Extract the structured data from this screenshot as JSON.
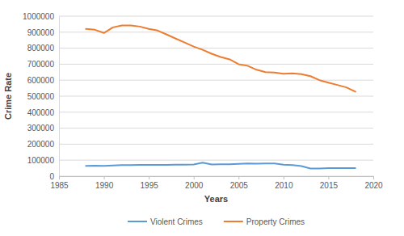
{
  "chart_data": {
    "type": "line",
    "x_label": "Years",
    "y_label": "Crime Rate",
    "x": [
      1988,
      1989,
      1990,
      1991,
      1992,
      1993,
      1994,
      1995,
      1996,
      1997,
      1998,
      1999,
      2000,
      2001,
      2002,
      2003,
      2004,
      2005,
      2006,
      2007,
      2008,
      2009,
      2010,
      2011,
      2012,
      2013,
      2014,
      2015,
      2016,
      2017,
      2018
    ],
    "series": [
      {
        "name": "Violent Crimes",
        "color": "#5b9bd5",
        "values": [
          65000,
          66000,
          65000,
          67000,
          69000,
          70000,
          71000,
          71000,
          71000,
          71000,
          72000,
          72000,
          73000,
          85000,
          73000,
          74000,
          75000,
          77000,
          79000,
          78000,
          79000,
          79000,
          72000,
          70000,
          63000,
          48000,
          48000,
          50000,
          51000,
          51000,
          51000
        ]
      },
      {
        "name": "Property Crimes",
        "color": "#ed7d31",
        "values": [
          920000,
          915000,
          895000,
          930000,
          942000,
          942000,
          935000,
          920000,
          910000,
          885000,
          860000,
          835000,
          810000,
          790000,
          765000,
          745000,
          730000,
          700000,
          690000,
          665000,
          650000,
          648000,
          640000,
          643000,
          638000,
          625000,
          600000,
          585000,
          570000,
          555000,
          528000
        ]
      }
    ],
    "xlim": [
      1985,
      2020
    ],
    "xticks": [
      1985,
      1990,
      1995,
      2000,
      2005,
      2010,
      2015,
      2020
    ],
    "ylim": [
      0,
      1000000
    ],
    "yticks": [
      0,
      100000,
      200000,
      300000,
      400000,
      500000,
      600000,
      700000,
      800000,
      900000,
      1000000
    ],
    "grid": true,
    "legend": "bottom"
  }
}
